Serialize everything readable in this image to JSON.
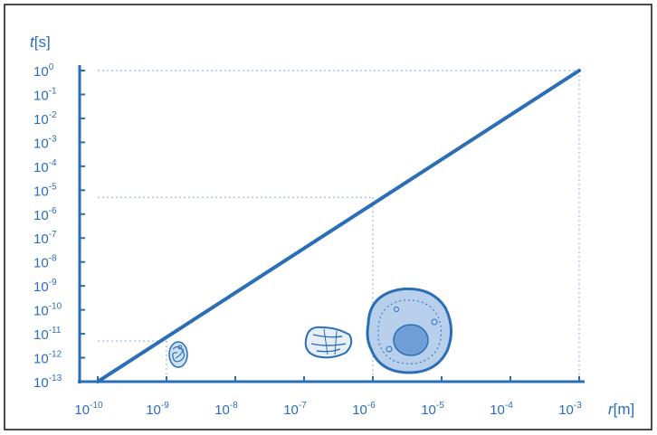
{
  "chart_data": {
    "type": "line",
    "x_axis": {
      "label_var": "r",
      "label_unit": "[m]",
      "scale": "log",
      "range": [
        1e-10,
        0.001
      ],
      "tick_labels": [
        {
          "base": "10",
          "exp": "-10"
        },
        {
          "base": "10",
          "exp": "-9"
        },
        {
          "base": "10",
          "exp": "-8"
        },
        {
          "base": "10",
          "exp": "-7"
        },
        {
          "base": "10",
          "exp": "-6"
        },
        {
          "base": "10",
          "exp": "-5"
        },
        {
          "base": "10",
          "exp": "-4"
        },
        {
          "base": "10",
          "exp": "-3"
        }
      ]
    },
    "y_axis": {
      "label_var": "t",
      "label_unit": "[s]",
      "scale": "log",
      "range": [
        1e-13,
        1
      ],
      "tick_labels": [
        {
          "base": "10",
          "exp": "0"
        },
        {
          "base": "10",
          "exp": "-1"
        },
        {
          "base": "10",
          "exp": "-2"
        },
        {
          "base": "10",
          "exp": "-3"
        },
        {
          "base": "10",
          "exp": "-4"
        },
        {
          "base": "10",
          "exp": "-5"
        },
        {
          "base": "10",
          "exp": "-6"
        },
        {
          "base": "10",
          "exp": "-7"
        },
        {
          "base": "10",
          "exp": "-8"
        },
        {
          "base": "10",
          "exp": "-9"
        },
        {
          "base": "10",
          "exp": "-10"
        },
        {
          "base": "10",
          "exp": "-11"
        },
        {
          "base": "10",
          "exp": "-12"
        },
        {
          "base": "10",
          "exp": "-13"
        }
      ]
    },
    "series": [
      {
        "points": [
          {
            "x": 1e-10,
            "y": 1e-13
          },
          {
            "x": 0.001,
            "y": 1
          }
        ]
      }
    ],
    "reference_lines": [
      {
        "x": 1e-09,
        "y": 5e-12
      },
      {
        "x": 1e-06,
        "y": 5e-06
      }
    ],
    "illustrations": [
      {
        "icon": "molecule-icon",
        "near_x": 2e-09
      },
      {
        "icon": "virus-icon",
        "near_x": 3e-07
      },
      {
        "icon": "cell-icon",
        "near_x": 4e-06
      }
    ],
    "grid": false,
    "colors": {
      "line": "#2a6eb8",
      "text": "#2a6eb8",
      "axis": "#2a6eb8",
      "guide": "#a9c3e3",
      "cell_fill": "#b9d0ec",
      "nucleus_fill": "#6f9fd6"
    }
  }
}
